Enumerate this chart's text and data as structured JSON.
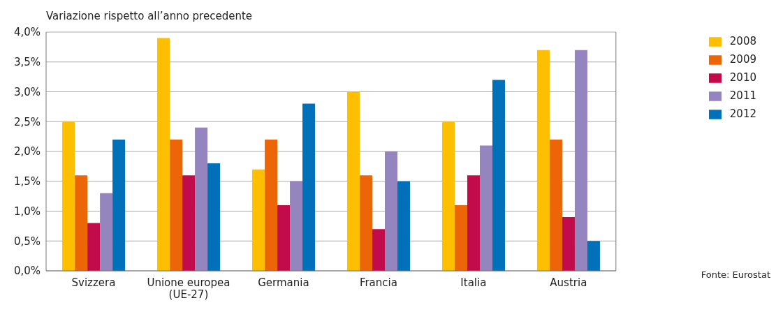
{
  "chart_data": {
    "type": "bar",
    "ylabel": "Variazione rispetto all’anno precedente",
    "categories": [
      "Svizzera",
      "Unione europea (UE-27)",
      "Germania",
      "Francia",
      "Italia",
      "Austria"
    ],
    "series": [
      {
        "name": "2008",
        "color": "#fdbf00",
        "values": [
          2.5,
          3.9,
          1.7,
          3.0,
          2.5,
          3.7
        ]
      },
      {
        "name": "2009",
        "color": "#ec6608",
        "values": [
          1.6,
          2.2,
          2.2,
          1.6,
          1.1,
          2.2
        ]
      },
      {
        "name": "2010",
        "color": "#c20b4a",
        "values": [
          0.8,
          1.6,
          1.1,
          0.7,
          1.6,
          0.9
        ]
      },
      {
        "name": "2011",
        "color": "#9485bf",
        "values": [
          1.3,
          2.4,
          1.5,
          2.0,
          2.1,
          3.7
        ]
      },
      {
        "name": "2012",
        "color": "#0070b8",
        "values": [
          2.2,
          1.8,
          2.8,
          1.5,
          3.2,
          0.5
        ]
      }
    ],
    "ylim": [
      0,
      4
    ],
    "yticks": [
      {
        "value": 0,
        "label": "0,0%"
      },
      {
        "value": 0.5,
        "label": "0,5%"
      },
      {
        "value": 1,
        "label": "1,0%"
      },
      {
        "value": 1.5,
        "label": "1,5%"
      },
      {
        "value": 2,
        "label": "2,0%"
      },
      {
        "value": 2.5,
        "label": "2,5%"
      },
      {
        "value": 3,
        "label": "3,0%"
      },
      {
        "value": 3.5,
        "label": "3,5%"
      },
      {
        "value": 4,
        "label": "4,0%"
      }
    ],
    "grid": "y",
    "legend": "top right",
    "annotations": [
      "Fonte: Eurostat"
    ]
  }
}
